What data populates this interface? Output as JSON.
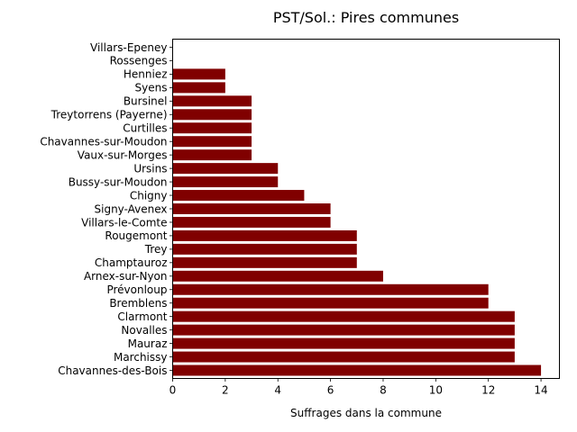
{
  "chart_data": {
    "type": "bar",
    "orientation": "horizontal",
    "title": "PST/Sol.: Pires communes",
    "xlabel": "Suffrages dans la commune",
    "ylabel": "",
    "xlim": [
      0,
      14.7
    ],
    "x_ticks": [
      "0",
      "2",
      "4",
      "6",
      "8",
      "10",
      "12",
      "14"
    ],
    "grid": false,
    "bar_color": "#800000",
    "categories": [
      "Chavannes-des-Bois",
      "Marchissy",
      "Mauraz",
      "Novalles",
      "Clarmont",
      "Bremblens",
      "Prévonloup",
      "Arnex-sur-Nyon",
      "Champtauroz",
      "Trey",
      "Rougemont",
      "Villars-le-Comte",
      "Signy-Avenex",
      "Chigny",
      "Bussy-sur-Moudon",
      "Ursins",
      "Vaux-sur-Morges",
      "Chavannes-sur-Moudon",
      "Curtilles",
      "Treytorrens (Payerne)",
      "Bursinel",
      "Syens",
      "Henniez",
      "Rossenges",
      "Villars-Epeney"
    ],
    "values": [
      14,
      13,
      13,
      13,
      13,
      12,
      12,
      8,
      7,
      7,
      7,
      6,
      6,
      5,
      4,
      4,
      3,
      3,
      3,
      3,
      3,
      2,
      2,
      0,
      0
    ]
  }
}
